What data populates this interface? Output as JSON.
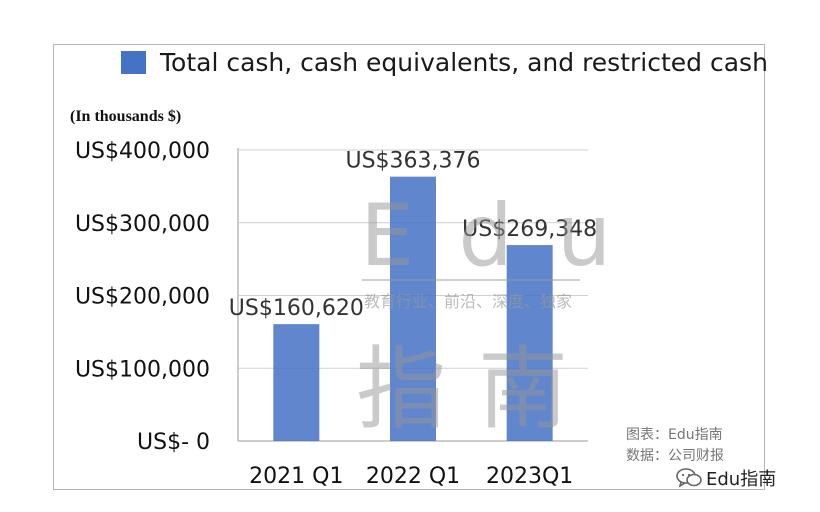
{
  "chart_data": {
    "type": "bar",
    "categories": [
      "2021 Q1",
      "2022 Q1",
      "2023Q1"
    ],
    "series": [
      {
        "name": "Total cash, cash equivalents, and restricted cash",
        "values": [
          160620,
          363376,
          269348
        ],
        "color": "#4472c4",
        "data_labels": [
          "US$160,620",
          "US$363,376",
          "US$269,348"
        ]
      }
    ],
    "unit_note": "(In thousands $)",
    "y_ticks": [
      0,
      100000,
      200000,
      300000,
      400000
    ],
    "y_tick_labels": [
      "US$- 0",
      "US$100,000",
      "US$200,000",
      "US$300,000",
      "US$400,000"
    ],
    "ylim": [
      0,
      400000
    ],
    "grid": true,
    "legend_position": "top",
    "bar_color": "#4472c4"
  },
  "watermark": {
    "latin": "Edu",
    "slogan": "教育行业、前沿、深度、独家",
    "cjk": "指南"
  },
  "credit": {
    "chart_source": "图表：Edu指南",
    "data_source": "数据：公司财报"
  },
  "brand": {
    "label": "Edu指南",
    "icon": "wechat-icon"
  }
}
